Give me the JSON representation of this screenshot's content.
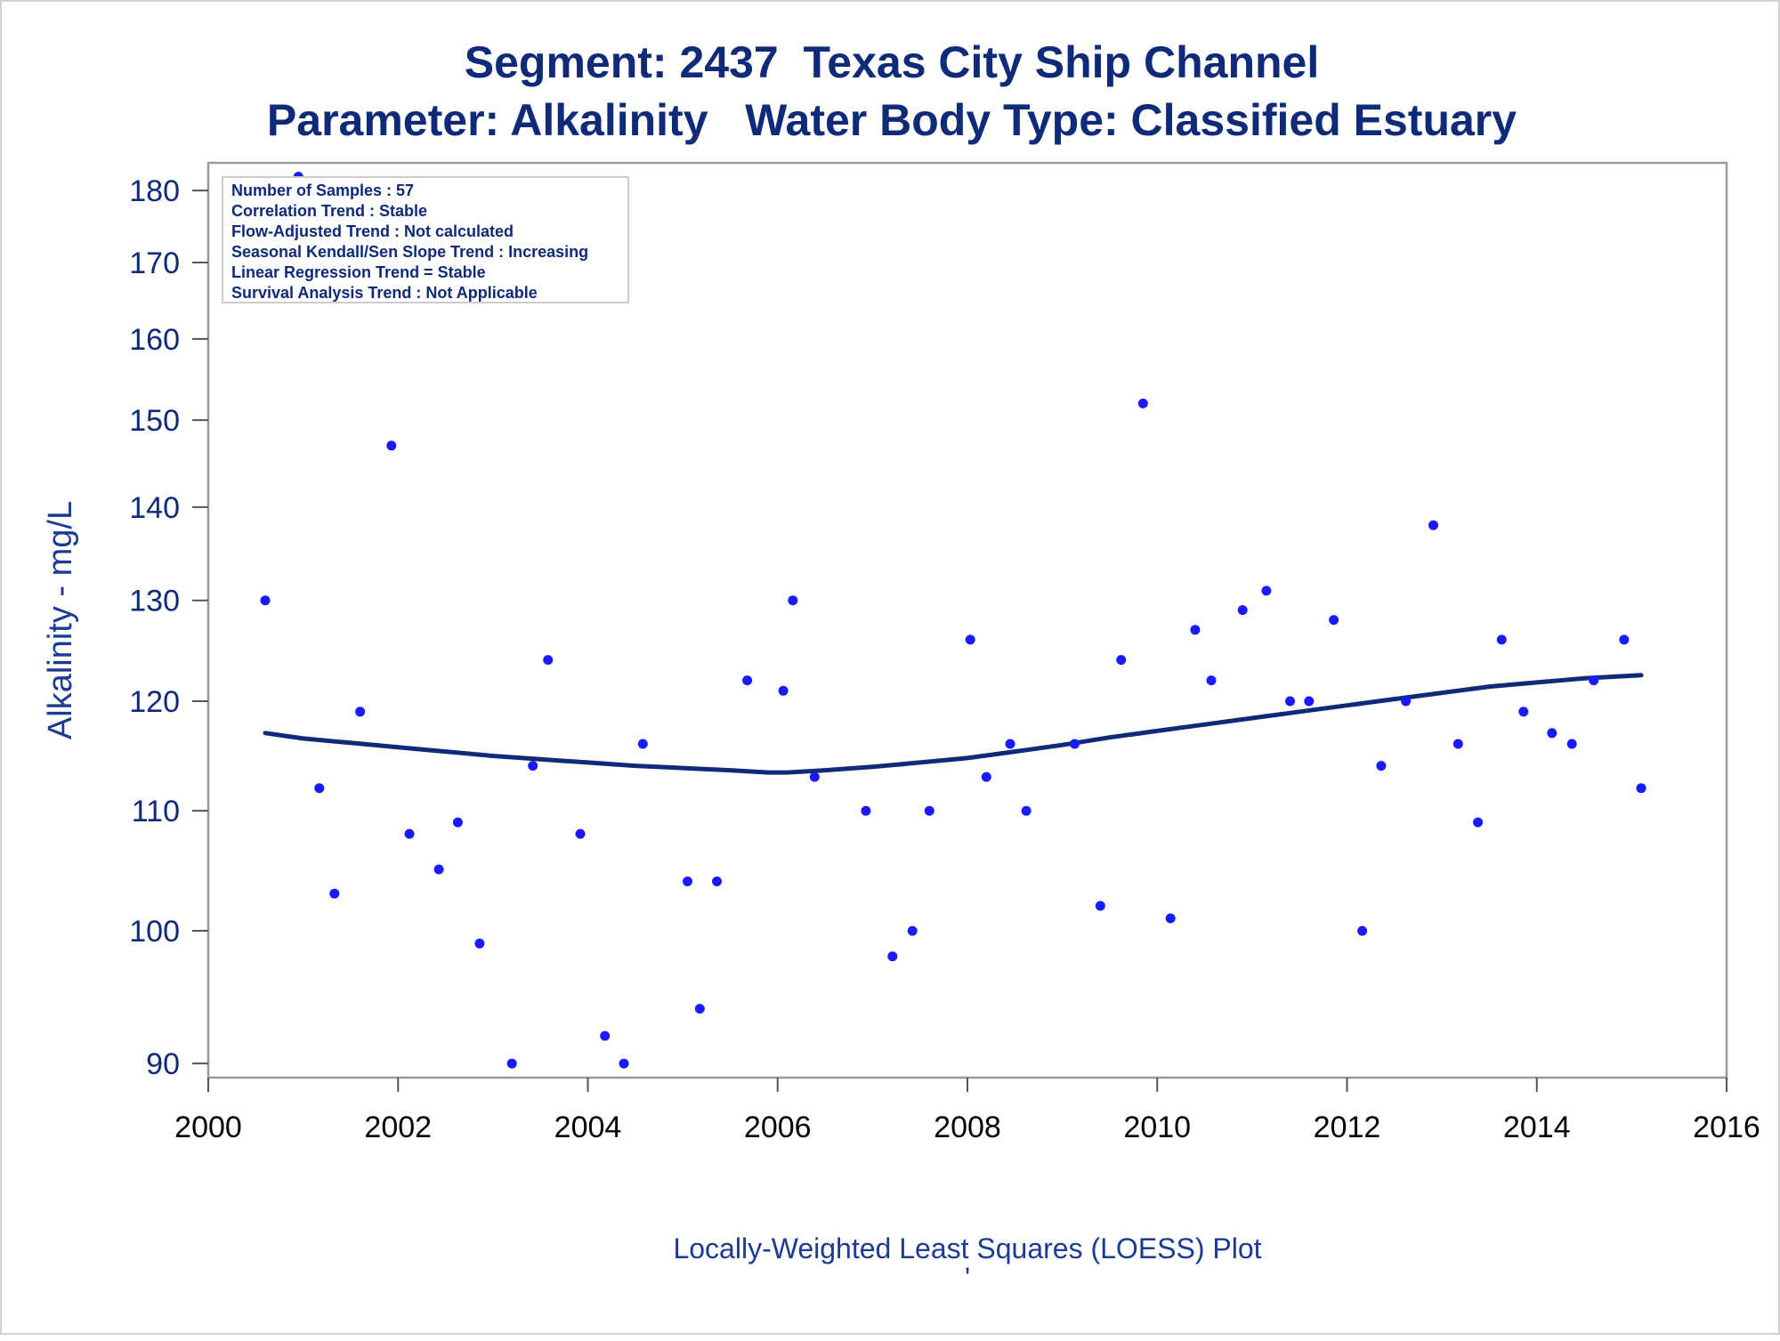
{
  "colors": {
    "title": "#0e2a78",
    "axis_text": "#0e2a78",
    "points": "#1a1aff",
    "loess_line": "#0e2a78",
    "frame": "#999999"
  },
  "chart_data": {
    "type": "scatter",
    "title": "Segment: 2437  Texas City Ship Channel",
    "subtitle": "Parameter: Alkalinity   Water Body Type: Classified Estuary",
    "xlabel": "",
    "ylabel": "Alkalinity - mg/L",
    "footnote": "Locally-Weighted Least Squares (LOESS) Plot",
    "footnote_mark": "'",
    "y_scale": "log",
    "xlim": [
      2000,
      2016
    ],
    "ylim": [
      89,
      184
    ],
    "x_ticks": [
      2000,
      2002,
      2004,
      2006,
      2008,
      2010,
      2012,
      2014,
      2016
    ],
    "y_ticks": [
      90,
      100,
      110,
      120,
      130,
      140,
      150,
      160,
      170,
      180
    ],
    "grid": false,
    "inset_box": [
      "Number of Samples : 57",
      "Correlation Trend : Stable",
      "Flow-Adjusted Trend : Not calculated",
      "Seasonal Kendall/Sen Slope Trend : Increasing",
      "Linear Regression Trend = Stable",
      "Survival Analysis Trend : Not Applicable"
    ],
    "inset_placement": "top-left",
    "series": [
      {
        "kind": "points",
        "points": [
          [
            2000.6,
            130
          ],
          [
            2000.95,
            182
          ],
          [
            2001.17,
            112
          ],
          [
            2001.33,
            103
          ],
          [
            2001.6,
            119
          ],
          [
            2001.93,
            147
          ],
          [
            2002.12,
            108
          ],
          [
            2002.43,
            105
          ],
          [
            2002.63,
            109
          ],
          [
            2002.86,
            99
          ],
          [
            2003.2,
            90
          ],
          [
            2003.42,
            114
          ],
          [
            2003.58,
            124
          ],
          [
            2003.92,
            108
          ],
          [
            2004.18,
            92
          ],
          [
            2004.38,
            90
          ],
          [
            2004.58,
            116
          ],
          [
            2005.05,
            104
          ],
          [
            2005.18,
            94
          ],
          [
            2005.36,
            104
          ],
          [
            2005.68,
            122
          ],
          [
            2006.06,
            121
          ],
          [
            2006.16,
            130
          ],
          [
            2006.39,
            113
          ],
          [
            2006.93,
            110
          ],
          [
            2007.21,
            98
          ],
          [
            2007.42,
            100
          ],
          [
            2007.6,
            110
          ],
          [
            2008.03,
            126
          ],
          [
            2008.2,
            113
          ],
          [
            2008.45,
            116
          ],
          [
            2008.62,
            110
          ],
          [
            2009.13,
            116
          ],
          [
            2009.4,
            102
          ],
          [
            2009.62,
            124
          ],
          [
            2009.85,
            152
          ],
          [
            2010.14,
            101
          ],
          [
            2010.4,
            127
          ],
          [
            2010.57,
            122
          ],
          [
            2010.9,
            129
          ],
          [
            2011.15,
            131
          ],
          [
            2011.4,
            120
          ],
          [
            2011.6,
            120
          ],
          [
            2011.86,
            128
          ],
          [
            2012.16,
            100
          ],
          [
            2012.36,
            114
          ],
          [
            2012.62,
            120
          ],
          [
            2012.91,
            138
          ],
          [
            2013.17,
            116
          ],
          [
            2013.38,
            109
          ],
          [
            2013.63,
            126
          ],
          [
            2013.86,
            119
          ],
          [
            2014.16,
            117
          ],
          [
            2014.37,
            116
          ],
          [
            2014.6,
            122
          ],
          [
            2014.92,
            126
          ],
          [
            2015.1,
            112
          ]
        ]
      },
      {
        "kind": "line",
        "points": [
          [
            2000.6,
            117
          ],
          [
            2001.0,
            116.5
          ],
          [
            2001.5,
            116.1
          ],
          [
            2002.0,
            115.7
          ],
          [
            2002.5,
            115.3
          ],
          [
            2003.0,
            114.9
          ],
          [
            2003.5,
            114.6
          ],
          [
            2004.0,
            114.3
          ],
          [
            2004.5,
            114.0
          ],
          [
            2005.0,
            113.8
          ],
          [
            2005.5,
            113.6
          ],
          [
            2005.9,
            113.4
          ],
          [
            2006.1,
            113.4
          ],
          [
            2006.5,
            113.6
          ],
          [
            2007.0,
            113.9
          ],
          [
            2007.5,
            114.3
          ],
          [
            2008.0,
            114.7
          ],
          [
            2008.5,
            115.3
          ],
          [
            2009.0,
            115.9
          ],
          [
            2009.5,
            116.6
          ],
          [
            2010.0,
            117.2
          ],
          [
            2010.5,
            117.8
          ],
          [
            2011.0,
            118.4
          ],
          [
            2011.5,
            119.0
          ],
          [
            2012.0,
            119.6
          ],
          [
            2012.5,
            120.2
          ],
          [
            2013.0,
            120.8
          ],
          [
            2013.5,
            121.4
          ],
          [
            2014.0,
            121.8
          ],
          [
            2014.5,
            122.2
          ],
          [
            2015.1,
            122.5
          ]
        ]
      }
    ]
  }
}
